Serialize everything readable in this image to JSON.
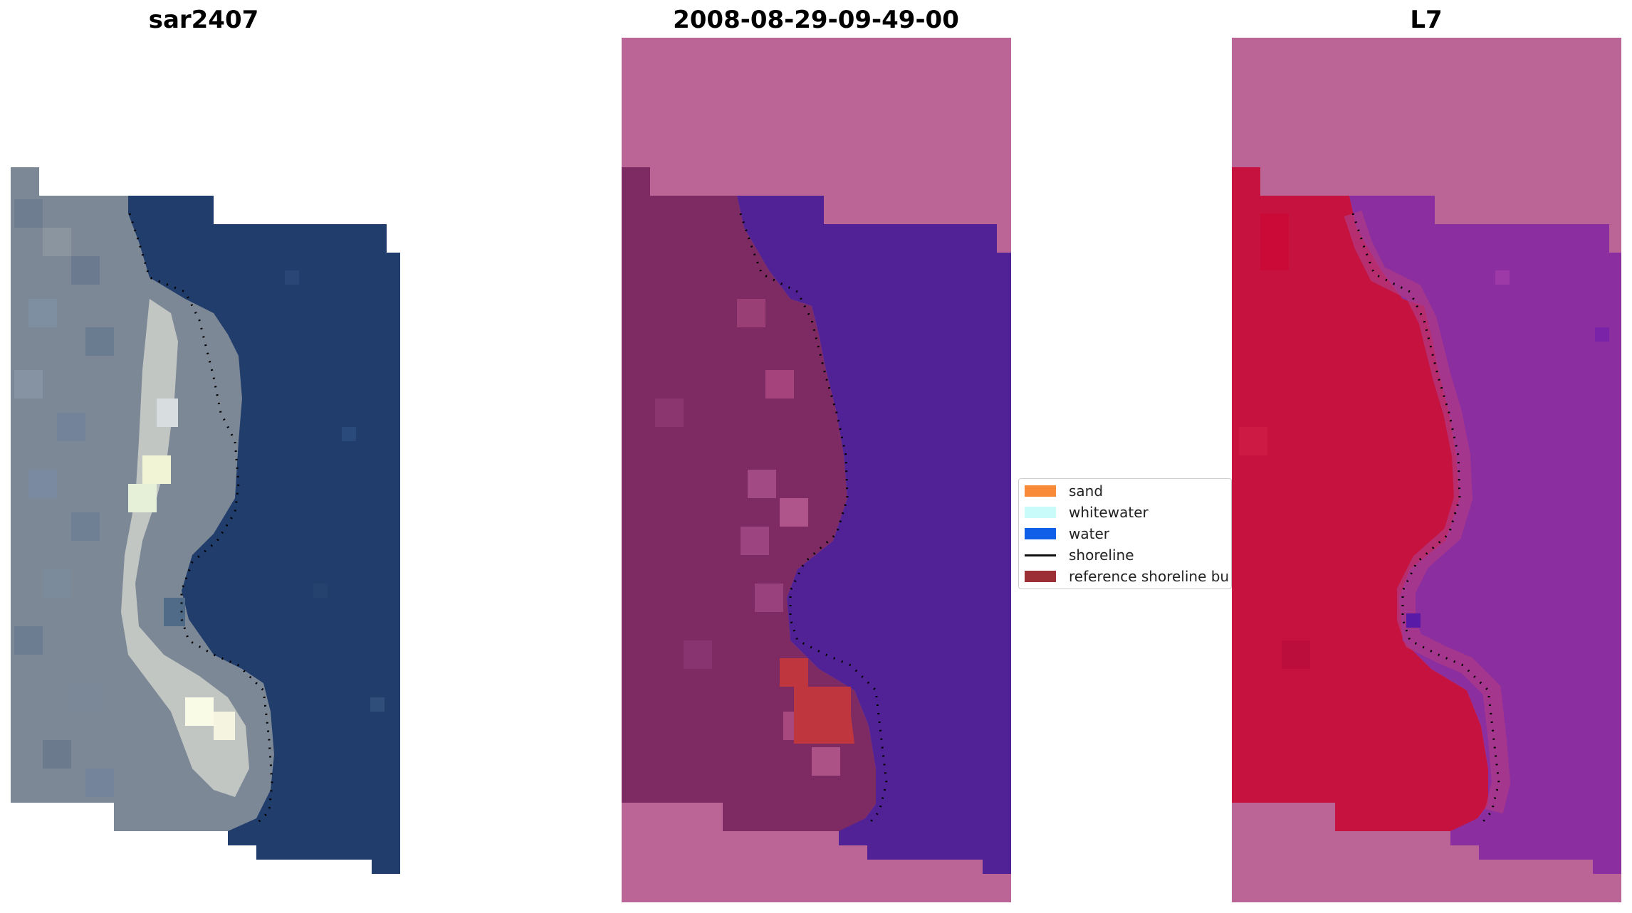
{
  "panels": [
    {
      "title": "sar2407"
    },
    {
      "title": "2008-08-29-09-49-00"
    },
    {
      "title": "L7"
    }
  ],
  "legend": {
    "items": [
      {
        "label": "sand",
        "type": "patch",
        "color": "#f88a3a"
      },
      {
        "label": "whitewater",
        "type": "patch",
        "color": "#c9fbfb"
      },
      {
        "label": "water",
        "type": "patch",
        "color": "#0f5fe8"
      },
      {
        "label": "shoreline",
        "type": "line",
        "color": "#111111"
      },
      {
        "label": "reference shoreline bu",
        "type": "patch",
        "color": "#9b2f35"
      }
    ]
  },
  "colors": {
    "mask": "#ba6595",
    "classified_water": "#512296",
    "classified_land": "#7a2a5e",
    "sand_overlay": "#c0363e",
    "ndwi_land": "#c81440",
    "ndwi_water": "#8b2ea0",
    "rgb_water": "#213d6c",
    "rgb_land": "#7e8a98"
  }
}
